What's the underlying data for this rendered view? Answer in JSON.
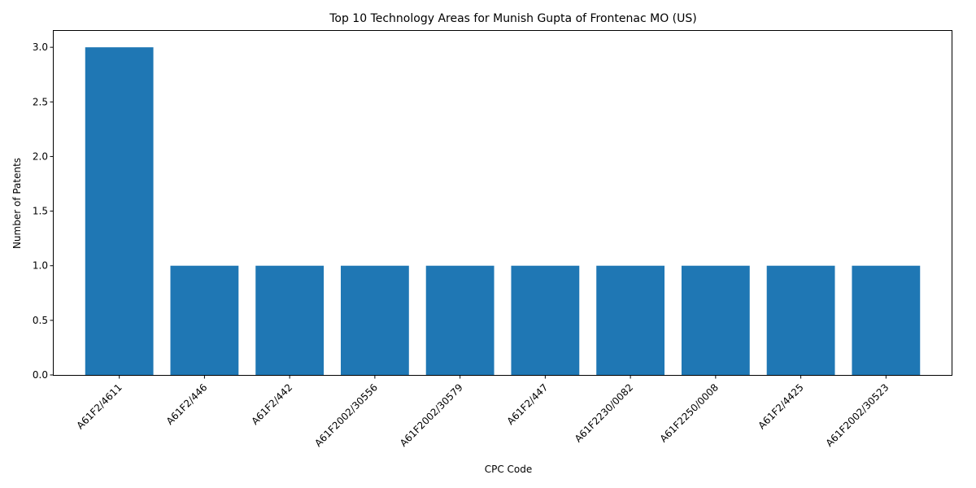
{
  "chart_data": {
    "type": "bar",
    "title": "Top 10 Technology Areas for Munish Gupta of Frontenac MO (US)",
    "xlabel": "CPC Code",
    "ylabel": "Number of Patents",
    "categories": [
      "A61F2/4611",
      "A61F2/446",
      "A61F2/442",
      "A61F2002/30556",
      "A61F2002/30579",
      "A61F2/447",
      "A61F2230/0082",
      "A61F2250/0008",
      "A61F2/4425",
      "A61F2002/30523"
    ],
    "values": [
      3,
      1,
      1,
      1,
      1,
      1,
      1,
      1,
      1,
      1
    ],
    "ylim": [
      0,
      3.15
    ],
    "yticks": [
      "0.0",
      "0.5",
      "1.0",
      "1.5",
      "2.0",
      "2.5",
      "3.0"
    ],
    "grid": false,
    "bar_color": "#1f77b4"
  }
}
